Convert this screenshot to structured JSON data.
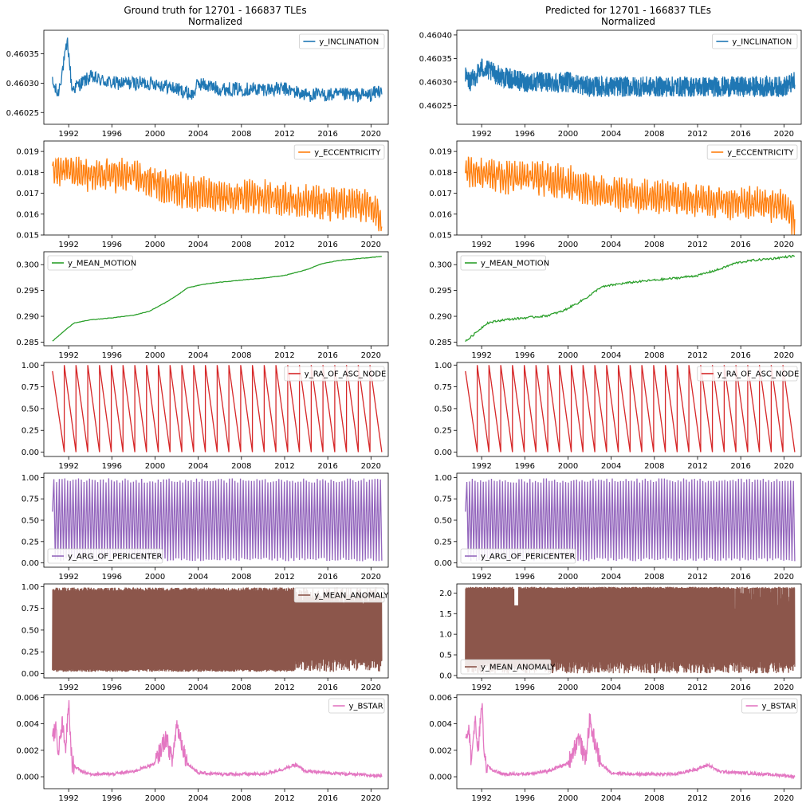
{
  "figure": {
    "left_title": [
      "Ground truth for 12701 - 166837 TLEs",
      "Normalized"
    ],
    "right_title": [
      "Predicted for 12701 - 166837 TLEs",
      "Normalized"
    ],
    "x_ticks": [
      "1992",
      "1996",
      "2000",
      "2004",
      "2008",
      "2012",
      "2016",
      "2020"
    ]
  },
  "chart_data": [
    {
      "panel": "gt-inclination",
      "type": "line",
      "column": "ground-truth",
      "series": [
        {
          "name": "y_INCLINATION",
          "color": "#1f77b4"
        }
      ],
      "legend": "top-right",
      "xlim": [
        1989.7,
        2021.6
      ],
      "ylim": [
        0.46023,
        0.46039
      ],
      "yticks": [
        "0.46025",
        "0.46030",
        "0.46035"
      ],
      "x": [
        1990.5,
        1991,
        1991.5,
        1991.9,
        1992.3,
        1994,
        1996,
        1998,
        2000,
        2002,
        2003.5,
        2004,
        2006,
        2008,
        2010,
        2012,
        2014,
        2016,
        2018,
        2020,
        2021
      ],
      "y": [
        0.4603,
        0.46028,
        0.46033,
        0.46037,
        0.46029,
        0.46031,
        0.4603,
        0.4603,
        0.4603,
        0.46029,
        0.46028,
        0.4603,
        0.46029,
        0.46029,
        0.46029,
        0.46029,
        0.46028,
        0.46028,
        0.46028,
        0.46028,
        0.46029
      ]
    },
    {
      "panel": "pred-inclination",
      "type": "line",
      "column": "predicted",
      "series": [
        {
          "name": "y_INCLINATION",
          "color": "#1f77b4"
        }
      ],
      "legend": "top-right",
      "xlim": [
        1989.7,
        2021.6
      ],
      "ylim": [
        0.46021,
        0.46041
      ],
      "yticks": [
        "0.46025",
        "0.46030",
        "0.46035",
        "0.46040"
      ],
      "x": [
        1990.5,
        1991,
        1992,
        1994,
        1996,
        1998,
        2000,
        2002,
        2004,
        2006,
        2008,
        2010,
        2012,
        2014,
        2016,
        2018,
        2020,
        2021
      ],
      "y": [
        0.46031,
        0.4603,
        0.46033,
        0.46031,
        0.4603,
        0.4603,
        0.4603,
        0.46029,
        0.46029,
        0.46029,
        0.46029,
        0.46029,
        0.46029,
        0.46029,
        0.46029,
        0.46029,
        0.46029,
        0.4603
      ]
    },
    {
      "panel": "gt-eccentricity",
      "type": "line",
      "column": "ground-truth",
      "series": [
        {
          "name": "y_ECCENTRICITY",
          "color": "#ff7f0e"
        }
      ],
      "legend": "top-right",
      "xlim": [
        1989.7,
        2021.6
      ],
      "ylim": [
        0.015,
        0.0195
      ],
      "yticks": [
        "0.015",
        "0.016",
        "0.017",
        "0.018",
        "0.019"
      ],
      "x": [
        1990.5,
        1992,
        1994,
        1996,
        1998,
        2000,
        2002,
        2004,
        2006,
        2008,
        2010,
        2012,
        2014,
        2016,
        2018,
        2020,
        2021
      ],
      "y": [
        0.018,
        0.0182,
        0.0178,
        0.0179,
        0.0178,
        0.0175,
        0.0172,
        0.017,
        0.0169,
        0.0168,
        0.0168,
        0.0167,
        0.0166,
        0.0165,
        0.0165,
        0.0164,
        0.0158
      ]
    },
    {
      "panel": "pred-eccentricity",
      "type": "line",
      "column": "predicted",
      "series": [
        {
          "name": "y_ECCENTRICITY",
          "color": "#ff7f0e"
        }
      ],
      "legend": "top-right",
      "xlim": [
        1989.7,
        2021.6
      ],
      "ylim": [
        0.015,
        0.0195
      ],
      "yticks": [
        "0.015",
        "0.016",
        "0.017",
        "0.018",
        "0.019"
      ],
      "x": [
        1990.5,
        1992,
        1994,
        1996,
        1998,
        2000,
        2002,
        2004,
        2006,
        2008,
        2010,
        2012,
        2014,
        2016,
        2018,
        2020,
        2021
      ],
      "y": [
        0.018,
        0.0181,
        0.0178,
        0.0178,
        0.0177,
        0.0175,
        0.0172,
        0.017,
        0.0169,
        0.0168,
        0.0168,
        0.0167,
        0.0166,
        0.0165,
        0.0165,
        0.0164,
        0.0157
      ]
    },
    {
      "panel": "gt-mean-motion",
      "type": "line",
      "column": "ground-truth",
      "series": [
        {
          "name": "y_MEAN_MOTION",
          "color": "#2ca02c"
        }
      ],
      "legend": "top-left",
      "xlim": [
        1989.7,
        2021.6
      ],
      "ylim": [
        0.2843,
        0.3025
      ],
      "yticks": [
        "0.285",
        "0.290",
        "0.295",
        "0.300"
      ],
      "x": [
        1990.5,
        1991.5,
        1992.5,
        1994,
        1996,
        1998,
        1999.5,
        2001,
        2002,
        2003,
        2004.5,
        2006,
        2008,
        2010,
        2012,
        2014,
        2015.5,
        2017,
        2019,
        2021
      ],
      "y": [
        0.2852,
        0.287,
        0.2887,
        0.2893,
        0.2897,
        0.2902,
        0.291,
        0.2927,
        0.294,
        0.2955,
        0.2962,
        0.2966,
        0.297,
        0.2974,
        0.2979,
        0.299,
        0.3002,
        0.3008,
        0.3012,
        0.3016
      ]
    },
    {
      "panel": "pred-mean-motion",
      "type": "line",
      "column": "predicted",
      "series": [
        {
          "name": "y_MEAN_MOTION",
          "color": "#2ca02c"
        }
      ],
      "legend": "top-left",
      "xlim": [
        1989.7,
        2021.6
      ],
      "ylim": [
        0.2843,
        0.3025
      ],
      "yticks": [
        "0.285",
        "0.290",
        "0.295",
        "0.300"
      ],
      "x": [
        1990.5,
        1991.5,
        1992.5,
        1994,
        1996,
        1998,
        1999.5,
        2001,
        2002,
        2003,
        2004.5,
        2006,
        2008,
        2010,
        2012,
        2014,
        2015.5,
        2017,
        2019,
        2021
      ],
      "y": [
        0.2851,
        0.2869,
        0.2887,
        0.2893,
        0.2897,
        0.2901,
        0.291,
        0.2927,
        0.294,
        0.2956,
        0.2962,
        0.2966,
        0.297,
        0.2974,
        0.2979,
        0.2991,
        0.3003,
        0.3008,
        0.3012,
        0.3017
      ]
    },
    {
      "panel": "gt-ra-of-asc-node",
      "type": "line",
      "column": "ground-truth",
      "series": [
        {
          "name": "y_RA_OF_ASC_NODE",
          "color": "#d62728"
        }
      ],
      "legend": "top-right",
      "xlim": [
        1989.7,
        2021.6
      ],
      "ylim": [
        -0.05,
        1.03
      ],
      "yticks": [
        "0.00",
        "0.25",
        "0.50",
        "0.75",
        "1.00"
      ],
      "start": 0.93,
      "sawtooth_count": 28,
      "pattern": "sawtooth falling from 1 to 0, 1990.5–2021"
    },
    {
      "panel": "pred-ra-of-asc-node",
      "type": "line",
      "column": "predicted",
      "series": [
        {
          "name": "y_RA_OF_ASC_NODE",
          "color": "#d62728"
        }
      ],
      "legend": "top-right",
      "xlim": [
        1989.7,
        2021.6
      ],
      "ylim": [
        -0.05,
        1.03
      ],
      "yticks": [
        "0.00",
        "0.25",
        "0.50",
        "0.75",
        "1.00"
      ],
      "start": 0.93,
      "sawtooth_count": 28,
      "pattern": "sawtooth falling from 1 to 0, 1990.5–2021"
    },
    {
      "panel": "gt-arg-of-pericenter",
      "type": "line",
      "column": "ground-truth",
      "series": [
        {
          "name": "y_ARG_OF_PERICENTER",
          "color": "#9467bd"
        }
      ],
      "legend": "bottom-left",
      "xlim": [
        1989.7,
        2021.6
      ],
      "ylim": [
        -0.05,
        1.05
      ],
      "yticks": [
        "0.00",
        "0.25",
        "0.50",
        "0.75",
        "1.00"
      ],
      "range": [
        0.0,
        1.0
      ],
      "pattern": "dense oscillation ~120 cycles, 1990.5–2021"
    },
    {
      "panel": "pred-arg-of-pericenter",
      "type": "line",
      "column": "predicted",
      "series": [
        {
          "name": "y_ARG_OF_PERICENTER",
          "color": "#9467bd"
        }
      ],
      "legend": "bottom-left",
      "xlim": [
        1989.7,
        2021.6
      ],
      "ylim": [
        -0.05,
        1.05
      ],
      "yticks": [
        "0.00",
        "0.25",
        "0.50",
        "0.75",
        "1.00"
      ],
      "range": [
        0.0,
        1.0
      ],
      "pattern": "dense oscillation ~120 cycles, 1990.5–2021"
    },
    {
      "panel": "gt-mean-anomaly",
      "type": "line",
      "column": "ground-truth",
      "series": [
        {
          "name": "y_MEAN_ANOMALY",
          "color": "#8c564b"
        }
      ],
      "legend": "top-right",
      "xlim": [
        1989.7,
        2021.6
      ],
      "ylim": [
        -0.05,
        1.03
      ],
      "yticks": [
        "0.00",
        "0.25",
        "0.50",
        "0.75",
        "1.00"
      ],
      "range": [
        0.0,
        1.0
      ],
      "pattern": "dense oscillation 1990.5–2013, solid band 2013–2021"
    },
    {
      "panel": "pred-mean-anomaly",
      "type": "line",
      "column": "predicted",
      "series": [
        {
          "name": "y_MEAN_ANOMALY",
          "color": "#8c564b"
        }
      ],
      "legend": "bottom-left",
      "xlim": [
        1989.7,
        2021.6
      ],
      "ylim": [
        -0.06,
        2.22
      ],
      "yticks": [
        "0.0",
        "0.5",
        "1.0",
        "1.5",
        "2.0"
      ],
      "range": [
        0.0,
        2.15
      ],
      "pattern": "solid band 0–2.15 across 1990.5–2021 with dips near 1995 and after 2014"
    },
    {
      "panel": "gt-bstar",
      "type": "line",
      "column": "ground-truth",
      "series": [
        {
          "name": "y_BSTAR",
          "color": "#e377c2"
        }
      ],
      "legend": "top-right",
      "xlim": [
        1989.7,
        2021.6
      ],
      "ylim": [
        -0.0009,
        0.0062
      ],
      "yticks": [
        "0.000",
        "0.002",
        "0.004",
        "0.006"
      ],
      "x": [
        1990.5,
        1990.8,
        1991,
        1991.4,
        1991.7,
        1992,
        1992.3,
        1993,
        1994,
        1996,
        1998,
        2000,
        2001,
        2001.6,
        2002,
        2003,
        2004,
        2006,
        2008,
        2010,
        2012,
        2013,
        2014,
        2016,
        2018,
        2020,
        2021
      ],
      "y": [
        0.003,
        0.0038,
        0.0015,
        0.004,
        0.002,
        0.0055,
        0.001,
        0.0005,
        0.0002,
        0.0002,
        0.0004,
        0.001,
        0.003,
        0.0012,
        0.004,
        0.001,
        0.0003,
        0.0002,
        0.0002,
        0.0002,
        0.0006,
        0.0009,
        0.0004,
        0.0003,
        0.0002,
        0.0001,
        0.0001
      ]
    },
    {
      "panel": "pred-bstar",
      "type": "line",
      "column": "predicted",
      "series": [
        {
          "name": "y_BSTAR",
          "color": "#e377c2"
        }
      ],
      "legend": "top-right",
      "xlim": [
        1989.7,
        2021.6
      ],
      "ylim": [
        -0.0009,
        0.0062
      ],
      "yticks": [
        "0.000",
        "0.002",
        "0.004",
        "0.006"
      ],
      "x": [
        1990.5,
        1990.8,
        1991,
        1991.4,
        1991.7,
        1992,
        1992.3,
        1993,
        1994,
        1996,
        1998,
        2000,
        2001,
        2001.6,
        2002,
        2003,
        2004,
        2006,
        2008,
        2010,
        2012,
        2013,
        2014,
        2016,
        2018,
        2020,
        2021
      ],
      "y": [
        0.003,
        0.004,
        0.0015,
        0.004,
        0.002,
        0.0058,
        0.001,
        0.0005,
        0.0002,
        0.0002,
        0.0004,
        0.001,
        0.003,
        0.0012,
        0.0042,
        0.001,
        0.0003,
        0.0002,
        0.0002,
        0.0002,
        0.0006,
        0.0009,
        0.0004,
        0.0003,
        0.0002,
        0.0001,
        0.0
      ]
    }
  ]
}
